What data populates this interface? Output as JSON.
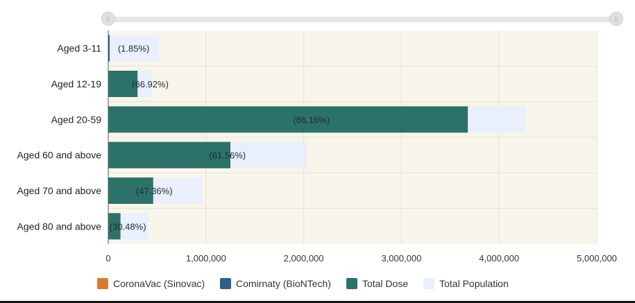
{
  "chart_data": {
    "type": "bar",
    "orientation": "horizontal",
    "categories": [
      "Aged 3-11",
      "Aged 12-19",
      "Aged 20-59",
      "Aged 60 and above",
      "Aged 70 and above",
      "Aged 80 and above"
    ],
    "series": [
      {
        "name": "CoronaVac (Sinovac)",
        "color": "#d97b2c",
        "values": [
          0,
          0,
          0,
          0,
          0,
          0
        ]
      },
      {
        "name": "Comirnaty (BioNTech)",
        "color": "#2c5f8a",
        "values": [
          10000,
          0,
          0,
          0,
          0,
          0
        ]
      },
      {
        "name": "Total Dose",
        "color": "#2d7268",
        "values": [
          0,
          300000,
          3680000,
          1250000,
          460000,
          125000
        ]
      },
      {
        "name": "Total Population",
        "color": "#e9f0fb",
        "values": [
          520000,
          450000,
          4270000,
          2030000,
          970000,
          410000
        ]
      }
    ],
    "labels": [
      "(1.85%)",
      "(66.92%)",
      "(86.16%)",
      "(61.56%)",
      "(47.36%)",
      "(30.48%)"
    ],
    "label_positions": [
      260000,
      430000,
      2080000,
      1220000,
      470000,
      200000
    ],
    "x_ticks": [
      "0",
      "1,000,000",
      "2,000,000",
      "3,000,000",
      "4,000,000",
      "5,000,000"
    ],
    "xlim": [
      0,
      5000000
    ],
    "title": "",
    "xlabel": "",
    "ylabel": "",
    "legend_position": "bottom"
  }
}
